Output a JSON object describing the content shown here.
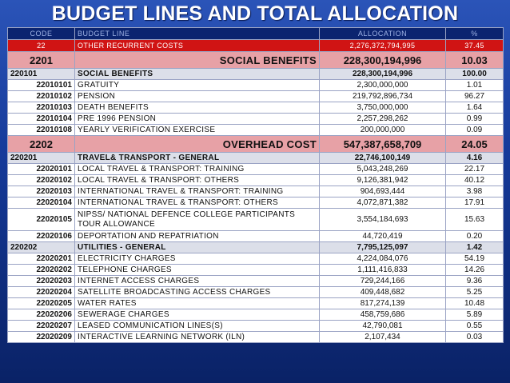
{
  "title": "BUDGET LINES AND TOTAL ALLOCATION",
  "headers": {
    "code": "CODE",
    "line": "BUDGET LINE",
    "allocation": "ALLOCATION",
    "pct": "%"
  },
  "colors": {
    "background": "#153a9a",
    "header": "#0b2470",
    "red_row": "#d01414",
    "pink_row": "#e7a1a6",
    "sub_row": "#dcdfe9"
  },
  "rows": [
    {
      "kind": "red",
      "code": "22",
      "line": "OTHER RECURRENT COSTS",
      "allocation": "2,276,372,794,995",
      "pct": "37.45"
    },
    {
      "kind": "pink",
      "code": "2201",
      "line": "SOCIAL BENEFITS",
      "allocation": "228,300,194,996",
      "pct": "10.03"
    },
    {
      "kind": "sub",
      "code": "220101",
      "line": "SOCIAL BENEFITS",
      "allocation": "228,300,194,996",
      "pct": "100.00"
    },
    {
      "kind": "row",
      "code": "22010101",
      "line": "GRATUITY",
      "allocation": "2,300,000,000",
      "pct": "1.01"
    },
    {
      "kind": "row",
      "code": "22010102",
      "line": "PENSION",
      "allocation": "219,792,896,734",
      "pct": "96.27"
    },
    {
      "kind": "row",
      "code": "22010103",
      "line": "DEATH BENEFITS",
      "allocation": "3,750,000,000",
      "pct": "1.64"
    },
    {
      "kind": "row",
      "code": "22010104",
      "line": "PRE 1996 PENSION",
      "allocation": "2,257,298,262",
      "pct": "0.99"
    },
    {
      "kind": "row",
      "code": "22010108",
      "line": "YEARLY VERIFICATION EXERCISE",
      "allocation": "200,000,000",
      "pct": "0.09"
    },
    {
      "kind": "pink",
      "code": "2202",
      "line": "OVERHEAD COST",
      "allocation": "547,387,658,709",
      "pct": "24.05"
    },
    {
      "kind": "sub",
      "code": "220201",
      "line": "TRAVEL& TRANSPORT - GENERAL",
      "allocation": "22,746,100,149",
      "pct": "4.16"
    },
    {
      "kind": "row",
      "code": "22020101",
      "line": "LOCAL TRAVEL & TRANSPORT: TRAINING",
      "allocation": "5,043,248,269",
      "pct": "22.17"
    },
    {
      "kind": "row",
      "code": "22020102",
      "line": "LOCAL TRAVEL & TRANSPORT: OTHERS",
      "allocation": "9,126,381,942",
      "pct": "40.12"
    },
    {
      "kind": "row",
      "code": "22020103",
      "line": "INTERNATIONAL TRAVEL & TRANSPORT: TRAINING",
      "allocation": "904,693,444",
      "pct": "3.98"
    },
    {
      "kind": "row",
      "code": "22020104",
      "line": "INTERNATIONAL TRAVEL & TRANSPORT: OTHERS",
      "allocation": "4,072,871,382",
      "pct": "17.91"
    },
    {
      "kind": "tall",
      "code": "22020105",
      "line": "NIPSS/ NATIONAL DEFENCE COLLEGE PARTICIPANTS TOUR ALLOWANCE",
      "allocation": "3,554,184,693",
      "pct": "15.63"
    },
    {
      "kind": "row",
      "code": "22020106",
      "line": "DEPORTATION AND REPATRIATION",
      "allocation": "44,720,419",
      "pct": "0.20"
    },
    {
      "kind": "sub",
      "code": "220202",
      "line": "UTILITIES - GENERAL",
      "allocation": "7,795,125,097",
      "pct": "1.42"
    },
    {
      "kind": "row",
      "code": "22020201",
      "line": "ELECTRICITY CHARGES",
      "allocation": "4,224,084,076",
      "pct": "54.19"
    },
    {
      "kind": "row",
      "code": "22020202",
      "line": "TELEPHONE CHARGES",
      "allocation": "1,111,416,833",
      "pct": "14.26"
    },
    {
      "kind": "row",
      "code": "22020203",
      "line": "INTERNET ACCESS CHARGES",
      "allocation": "729,244,166",
      "pct": "9.36"
    },
    {
      "kind": "row",
      "code": "22020204",
      "line": "SATELLITE BROADCASTING ACCESS CHARGES",
      "allocation": "409,448,682",
      "pct": "5.25"
    },
    {
      "kind": "row",
      "code": "22020205",
      "line": "WATER RATES",
      "allocation": "817,274,139",
      "pct": "10.48"
    },
    {
      "kind": "row",
      "code": "22020206",
      "line": "SEWERAGE CHARGES",
      "allocation": "458,759,686",
      "pct": "5.89"
    },
    {
      "kind": "row",
      "code": "22020207",
      "line": "LEASED COMMUNICATION LINES(S)",
      "allocation": "42,790,081",
      "pct": "0.55"
    },
    {
      "kind": "row",
      "code": "22020209",
      "line": "INTERACTIVE LEARNING NETWORK (ILN)",
      "allocation": "2,107,434",
      "pct": "0.03"
    }
  ]
}
